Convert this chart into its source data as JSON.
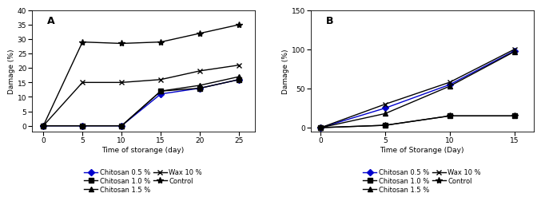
{
  "A": {
    "title": "A",
    "xlabel": "Time of storange (day)",
    "ylabel": "Damage (%)",
    "xlim": [
      -1.5,
      27
    ],
    "ylim": [
      -2,
      40
    ],
    "xticks": [
      0,
      5,
      10,
      15,
      20,
      25
    ],
    "yticks": [
      0,
      5,
      10,
      15,
      20,
      25,
      30,
      35,
      40
    ],
    "series": {
      "chitosan_0.5": {
        "x": [
          0,
          5,
          10,
          15,
          20,
          25
        ],
        "y": [
          0,
          0,
          0,
          11,
          13,
          16
        ],
        "color": "#0000cc",
        "marker": "D",
        "label": "Chitosan 0.5 %",
        "markersize": 4,
        "linewidth": 1.0
      },
      "chitosan_1.0": {
        "x": [
          0,
          5,
          10,
          15,
          20,
          25
        ],
        "y": [
          0,
          0,
          0,
          12,
          13,
          16
        ],
        "color": "#000000",
        "marker": "s",
        "label": "Chitosan 1.0 %",
        "markersize": 4,
        "linewidth": 1.0
      },
      "chitosan_1.5": {
        "x": [
          0,
          5,
          10,
          15,
          20,
          25
        ],
        "y": [
          0,
          0,
          0,
          12,
          14,
          17
        ],
        "color": "#000000",
        "marker": "^",
        "label": "Chitosan 1.5 %",
        "markersize": 4,
        "linewidth": 1.0
      },
      "wax_10": {
        "x": [
          0,
          5,
          10,
          15,
          20,
          25
        ],
        "y": [
          0,
          15,
          15,
          16,
          19,
          21
        ],
        "color": "#000000",
        "marker": "x",
        "label": "Wax 10 %",
        "markersize": 5,
        "linewidth": 1.0
      },
      "control": {
        "x": [
          0,
          5,
          10,
          15,
          20,
          25
        ],
        "y": [
          0,
          29,
          28.5,
          29,
          32,
          35
        ],
        "color": "#000000",
        "marker": "*",
        "label": "Control",
        "markersize": 6,
        "linewidth": 1.0
      }
    }
  },
  "B": {
    "title": "B",
    "xlabel": "Time of Storange (Day)",
    "ylabel": "Damage (%)",
    "xlim": [
      -0.8,
      16.5
    ],
    "ylim": [
      -5,
      150
    ],
    "xticks": [
      0,
      5,
      10,
      15
    ],
    "yticks": [
      0,
      50,
      100,
      150
    ],
    "series": {
      "chitosan_0.5": {
        "x": [
          0,
          5,
          10,
          15
        ],
        "y": [
          0,
          25,
          55,
          98
        ],
        "color": "#0000cc",
        "marker": "D",
        "label": "Chitosan 0.5 %",
        "markersize": 4,
        "linewidth": 1.0
      },
      "chitosan_1.0": {
        "x": [
          0,
          5,
          10,
          15
        ],
        "y": [
          0,
          3,
          15,
          15
        ],
        "color": "#000000",
        "marker": "s",
        "label": "Chitosan 1.0 %",
        "markersize": 4,
        "linewidth": 1.0
      },
      "chitosan_1.5": {
        "x": [
          0,
          5,
          10,
          15
        ],
        "y": [
          0,
          18,
          53,
          97
        ],
        "color": "#000000",
        "marker": "^",
        "label": "Chitosan 1.5 %",
        "markersize": 4,
        "linewidth": 1.0
      },
      "wax_10": {
        "x": [
          0,
          5,
          10,
          15
        ],
        "y": [
          0,
          30,
          58,
          100
        ],
        "color": "#000000",
        "marker": "x",
        "label": "Wax 10 %",
        "markersize": 5,
        "linewidth": 1.0
      },
      "control": {
        "x": [
          0,
          5,
          10,
          15
        ],
        "y": [
          0,
          3,
          15,
          15
        ],
        "color": "#000000",
        "marker": "*",
        "label": "Control",
        "markersize": 6,
        "linewidth": 1.0
      }
    }
  },
  "legend_order": [
    "chitosan_0.5",
    "chitosan_1.0",
    "chitosan_1.5",
    "wax_10",
    "control"
  ],
  "background_color": "#ffffff",
  "font_size": 6.5
}
